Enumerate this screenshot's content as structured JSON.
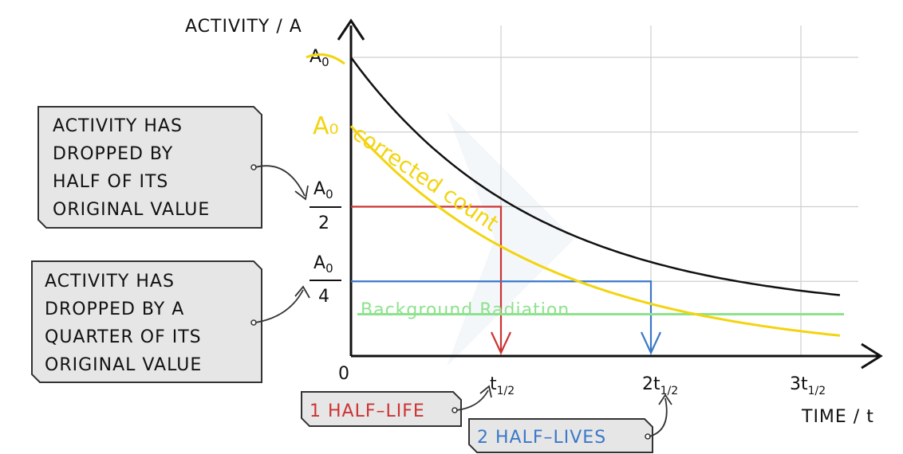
{
  "chart_data": {
    "type": "line",
    "ylabel": "ACTIVITY / A",
    "xlabel": "TIME / t",
    "origin_label": "0",
    "x_ticks": [
      {
        "coef": "",
        "sub": "1/2",
        "value": 1
      },
      {
        "coef": "2",
        "sub": "1/2",
        "value": 2
      },
      {
        "coef": "3",
        "sub": "1/2",
        "value": 3
      }
    ],
    "y_labels": {
      "a0": "A",
      "a0_sub": "0",
      "half_den": "2",
      "quarter_den": "4"
    },
    "xlim": [
      0,
      3.3
    ],
    "ylim": [
      0,
      1.1
    ],
    "series": [
      {
        "curve": "total",
        "color": "#111111",
        "y0": 1.0,
        "half_life": 1.0,
        "floor": 0.14
      },
      {
        "name": "corrected count",
        "color": "#f2d40f",
        "y0": 0.77,
        "half_life": 1.0
      }
    ],
    "background": {
      "name": "Background Radiation",
      "value": 0.14,
      "color": "#8de28d"
    },
    "annotations": {
      "a0_handwritten": "A₀",
      "half_box": [
        "ACTIVITY  HAS",
        "DROPPED  BY",
        "HALF  OF  ITS",
        "ORIGINAL  VALUE"
      ],
      "quarter_box": [
        "ACTIVITY  HAS",
        "DROPPED  BY  A",
        "QUARTER  OF  ITS",
        "ORIGINAL  VALUE"
      ],
      "one_half_life": "1 HALF–LIFE",
      "two_half_lives": "2 HALF–LIVES"
    },
    "colors": {
      "red": "#cc3333",
      "blue": "#3a78c9",
      "box_fill": "#e6e6e6"
    }
  }
}
